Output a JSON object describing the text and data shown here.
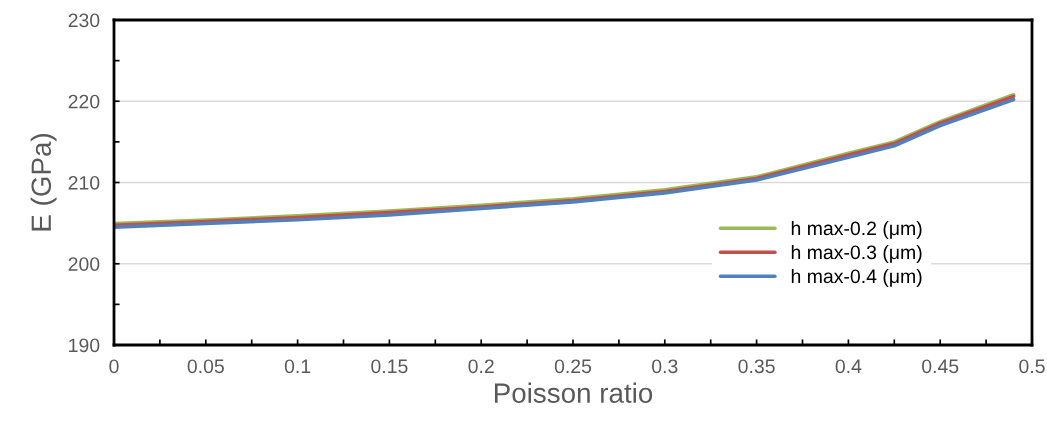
{
  "chart_data": {
    "type": "line",
    "xlabel": "Poisson ratio",
    "ylabel": "E (GPa)",
    "x": [
      0,
      0.05,
      0.1,
      0.15,
      0.2,
      0.25,
      0.3,
      0.35,
      0.4,
      0.425,
      0.45,
      0.49
    ],
    "series": [
      {
        "name": "h max-0.2 (μm)",
        "color": "#9bbb59",
        "values": [
          204.95,
          205.4,
          205.9,
          206.5,
          207.2,
          208.0,
          209.1,
          210.7,
          213.6,
          215.0,
          217.5,
          220.8
        ]
      },
      {
        "name": "h max-0.3 (μm)",
        "color": "#c0504d",
        "values": [
          204.75,
          205.2,
          205.7,
          206.3,
          207.0,
          207.8,
          208.9,
          210.5,
          213.4,
          214.8,
          217.3,
          220.6
        ]
      },
      {
        "name": "h max-0.4 (μm)",
        "color": "#4f81bd",
        "values": [
          204.5,
          204.95,
          205.4,
          206.0,
          206.8,
          207.6,
          208.7,
          210.3,
          213.1,
          214.5,
          217.0,
          220.2
        ]
      }
    ],
    "xlim": [
      0,
      0.5
    ],
    "xticks": [
      0,
      0.05,
      0.1,
      0.15,
      0.2,
      0.25,
      0.3,
      0.35,
      0.4,
      0.45,
      0.5
    ],
    "ylim": [
      190,
      230
    ],
    "yticks": [
      190,
      200,
      210,
      220,
      230
    ],
    "grid": "y",
    "legend": "right",
    "line_style": "solid",
    "marker": "none"
  }
}
